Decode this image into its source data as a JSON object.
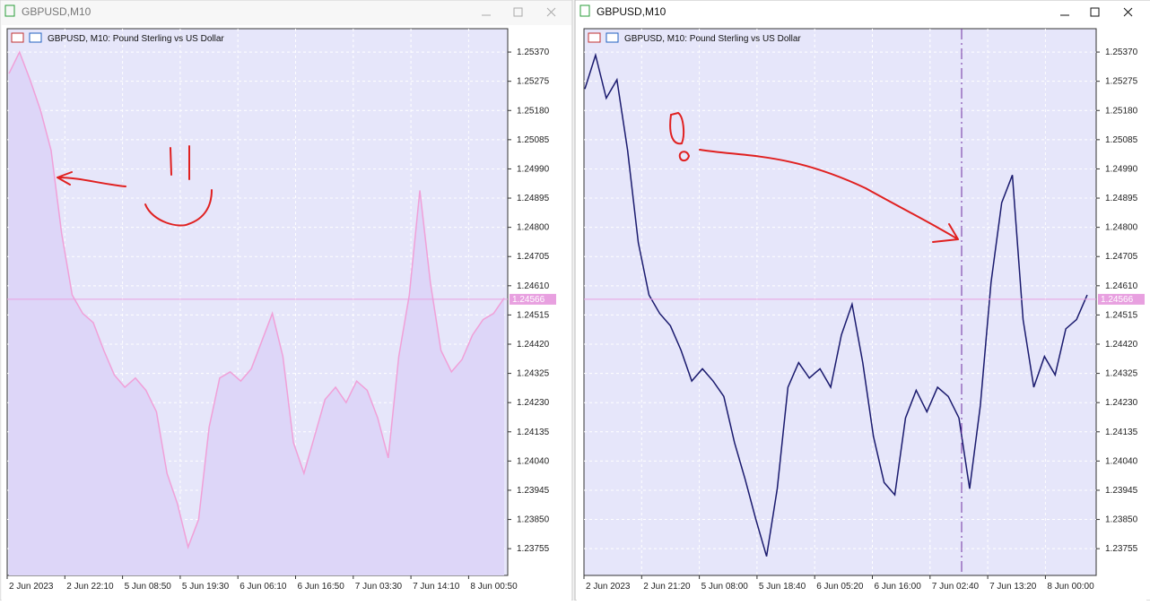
{
  "windows": [
    {
      "title": "GBPUSD,M10",
      "chart": {
        "header": "GBPUSD, M10:  Pound Sterling vs US Dollar",
        "ylim": [
          1.23668,
          1.25446
        ],
        "yticks": [
          {
            "value": 1.2537,
            "label": "1.25370"
          },
          1.25275,
          {
            "value": 1.2518,
            "label": "1.25180"
          },
          1.25085,
          {
            "value": 1.2499,
            "label": "1.24990"
          },
          1.24895,
          {
            "value": 1.248,
            "label": "1.24800"
          },
          1.24705,
          {
            "value": 1.2461,
            "label": "1.24610"
          },
          1.24515,
          {
            "value": 1.2442,
            "label": "1.24420"
          },
          1.24325,
          {
            "value": 1.2423,
            "label": "1.24230"
          },
          1.24135,
          {
            "value": 1.2404,
            "label": "1.24040"
          },
          1.23945,
          {
            "value": 1.2385,
            "label": "1.23850"
          },
          1.23755
        ],
        "x_labels": [
          "2 Jun 2023",
          "2 Jun 22:10",
          "5 Jun 08:50",
          "5 Jun 19:30",
          "6 Jun 06:10",
          "6 Jun 16:50",
          "7 Jun 03:30",
          "7 Jun 14:10",
          "8 Jun 00:50"
        ],
        "current_price": 1.24566,
        "color": "#f0a0d8",
        "fill": "#ddd6f8",
        "values": [
          1.253,
          1.2537,
          1.2528,
          1.2518,
          1.2505,
          1.2478,
          1.2458,
          1.2452,
          1.2449,
          1.244,
          1.2432,
          1.2428,
          1.2431,
          1.2427,
          1.242,
          1.24,
          1.239,
          1.2376,
          1.2385,
          1.2415,
          1.2431,
          1.2433,
          1.243,
          1.2434,
          1.2443,
          1.2452,
          1.2438,
          1.241,
          1.24,
          1.2412,
          1.2424,
          1.2428,
          1.2423,
          1.243,
          1.2427,
          1.2418,
          1.2405,
          1.2438,
          1.2458,
          1.2492,
          1.2462,
          1.244,
          1.2433,
          1.2437,
          1.2445,
          1.245,
          1.2452,
          1.2457
        ]
      }
    },
    {
      "title": "GBPUSD,M10",
      "chart": {
        "header": "GBPUSD, M10:  Pound Sterling vs US Dollar",
        "ylim": [
          1.23668,
          1.25446
        ],
        "yticks": [
          {
            "value": 1.2537,
            "label": "1.25370"
          },
          1.25275,
          {
            "value": 1.2518,
            "label": "1.25180"
          },
          1.25085,
          {
            "value": 1.2499,
            "label": "1.24990"
          },
          1.24895,
          {
            "value": 1.248,
            "label": "1.24800"
          },
          1.24705,
          {
            "value": 1.2461,
            "label": "1.24610"
          },
          1.24515,
          {
            "value": 1.2442,
            "label": "1.24420"
          },
          1.24325,
          {
            "value": 1.2423,
            "label": "1.24230"
          },
          1.24135,
          {
            "value": 1.2404,
            "label": "1.24040"
          },
          1.23945,
          {
            "value": 1.2385,
            "label": "1.23850"
          },
          1.23755
        ],
        "x_labels": [
          "2 Jun 2023",
          "2 Jun 21:20",
          "5 Jun 08:00",
          "5 Jun 18:40",
          "6 Jun 05:20",
          "6 Jun 16:00",
          "7 Jun 02:40",
          "7 Jun 13:20",
          "8 Jun 00:00"
        ],
        "current_price": 1.24566,
        "color": "#1a1a6e",
        "fill": null,
        "values": [
          1.2525,
          1.2536,
          1.2522,
          1.2528,
          1.2505,
          1.2475,
          1.2458,
          1.2452,
          1.2448,
          1.244,
          1.243,
          1.2434,
          1.243,
          1.2425,
          1.241,
          1.2398,
          1.2385,
          1.2373,
          1.2395,
          1.2428,
          1.2436,
          1.2431,
          1.2434,
          1.2428,
          1.2445,
          1.2455,
          1.2436,
          1.2412,
          1.2397,
          1.2393,
          1.2418,
          1.2427,
          1.242,
          1.2428,
          1.2425,
          1.2418,
          1.2395,
          1.2422,
          1.2462,
          1.2488,
          1.2497,
          1.245,
          1.2428,
          1.2438,
          1.2432,
          1.2447,
          1.245,
          1.2458
        ]
      }
    }
  ]
}
